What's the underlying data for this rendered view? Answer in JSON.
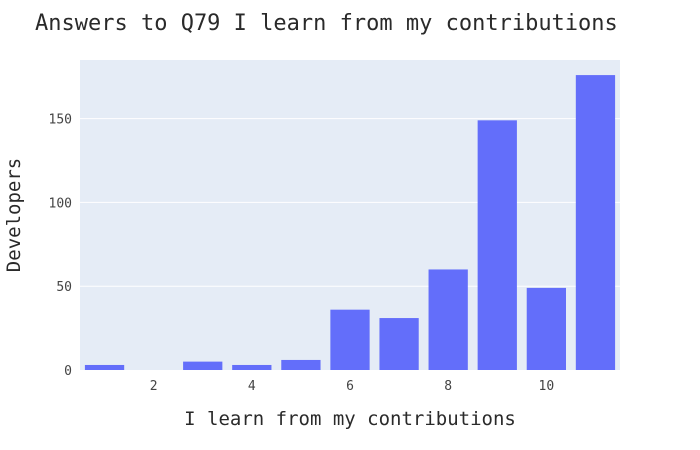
{
  "chart_data": {
    "type": "bar",
    "title": "Answers to Q79 I learn from my contributions",
    "xlabel": "I learn from my contributions",
    "ylabel": "Developers",
    "x": [
      1,
      2,
      3,
      4,
      5,
      6,
      7,
      8,
      9,
      10,
      11
    ],
    "values": [
      3,
      0,
      5,
      3,
      6,
      36,
      31,
      60,
      149,
      49,
      176
    ],
    "xticks": [
      2,
      4,
      6,
      8,
      10
    ],
    "yticks": [
      0,
      50,
      100,
      150
    ],
    "xlim": [
      0.5,
      11.5
    ],
    "ylim": [
      0,
      185
    ],
    "grid": true,
    "colors": {
      "bar": "#636efa",
      "plot_bg": "#e5ecf6",
      "grid": "#ffffff"
    }
  }
}
